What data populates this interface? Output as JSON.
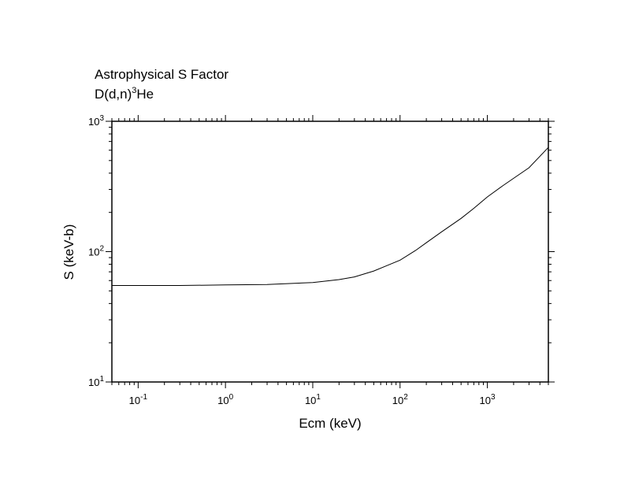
{
  "chart_data": {
    "type": "line",
    "title": "Astrophysical S Factor",
    "subtitle": {
      "base": "D(d,n)",
      "superscript": "3",
      "suffix": "He"
    },
    "xlabel": "Ecm (keV)",
    "ylabel": "S (keV-b)",
    "xscale": "log",
    "yscale": "log",
    "xlim": [
      0.05,
      5000
    ],
    "ylim": [
      10,
      1000
    ],
    "x_ticks": [
      {
        "base": "10",
        "exp": "-1",
        "value": 0.1
      },
      {
        "base": "10",
        "exp": "0",
        "value": 1
      },
      {
        "base": "10",
        "exp": "1",
        "value": 10
      },
      {
        "base": "10",
        "exp": "2",
        "value": 100
      },
      {
        "base": "10",
        "exp": "3",
        "value": 1000
      }
    ],
    "y_ticks": [
      {
        "base": "10",
        "exp": "1",
        "value": 10
      },
      {
        "base": "10",
        "exp": "2",
        "value": 100
      },
      {
        "base": "10",
        "exp": "3",
        "value": 1000
      }
    ],
    "grid": false,
    "line_color": "#000000",
    "series": [
      {
        "x": [
          0.05,
          0.1,
          0.3,
          1,
          3,
          10,
          20,
          30,
          50,
          70,
          100,
          150,
          200,
          300,
          500,
          700,
          1000,
          1500,
          2000,
          3000,
          5000
        ],
        "y": [
          55,
          55,
          55,
          55.5,
          56,
          58,
          61,
          64,
          71,
          78,
          86,
          102,
          117,
          142,
          180,
          215,
          263,
          320,
          365,
          440,
          630
        ]
      }
    ]
  }
}
